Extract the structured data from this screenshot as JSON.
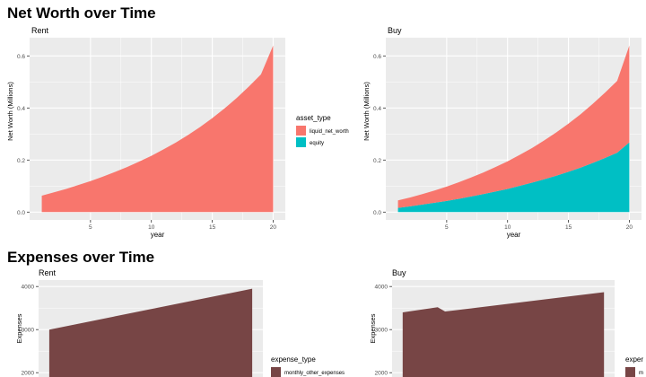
{
  "sections": {
    "net_worth_title": "Net Worth over Time",
    "expenses_title": "Expenses over Time"
  },
  "colors": {
    "liquid_net_worth": "#F8766D",
    "equity": "#00BFC4",
    "monthly_other_expenses": "#774545",
    "panel_bg": "#EBEBEB",
    "grid": "#FFFFFF"
  },
  "chart_data": [
    {
      "type": "area",
      "stacked": true,
      "title": "Rent",
      "xlabel": "year",
      "ylabel": "Net Worth (Millions)",
      "xlim": [
        0,
        21
      ],
      "ylim": [
        -0.03,
        0.67
      ],
      "xticks": [
        5,
        10,
        15,
        20
      ],
      "xtick_labels": [
        "5",
        "10",
        "15",
        "20"
      ],
      "yticks": [
        0.0,
        0.2,
        0.4,
        0.6
      ],
      "ytick_labels": [
        "0.0",
        "0.2",
        "0.4",
        "0.6"
      ],
      "grid": true,
      "legend": {
        "title": "asset_type",
        "placement": "right",
        "entries": [
          {
            "label": "liquid_net_worth",
            "color": "#F8766D"
          },
          {
            "label": "equity",
            "color": "#00BFC4"
          }
        ]
      },
      "x": [
        1,
        2,
        3,
        4,
        5,
        6,
        7,
        8,
        9,
        10,
        11,
        12,
        13,
        14,
        15,
        16,
        17,
        18,
        19,
        20
      ],
      "series": [
        {
          "name": "liquid_net_worth",
          "color": "#F8766D",
          "values": [
            0.063,
            0.076,
            0.089,
            0.104,
            0.119,
            0.136,
            0.154,
            0.173,
            0.194,
            0.216,
            0.241,
            0.267,
            0.296,
            0.327,
            0.361,
            0.398,
            0.438,
            0.482,
            0.529,
            0.64
          ]
        }
      ]
    },
    {
      "type": "area",
      "stacked": true,
      "title": "Buy",
      "xlabel": "year",
      "ylabel": "Net Worth (Millions)",
      "xlim": [
        0,
        21
      ],
      "ylim": [
        -0.03,
        0.67
      ],
      "xticks": [
        5,
        10,
        15,
        20
      ],
      "xtick_labels": [
        "5",
        "10",
        "15",
        "20"
      ],
      "yticks": [
        0.0,
        0.2,
        0.4,
        0.6
      ],
      "ytick_labels": [
        "0.0",
        "0.2",
        "0.4",
        "0.6"
      ],
      "grid": true,
      "x": [
        1,
        2,
        3,
        4,
        5,
        6,
        7,
        8,
        9,
        10,
        11,
        12,
        13,
        14,
        15,
        16,
        17,
        18,
        19,
        20
      ],
      "series": [
        {
          "name": "equity",
          "color": "#00BFC4",
          "values": [
            0.016,
            0.022,
            0.029,
            0.036,
            0.043,
            0.051,
            0.06,
            0.069,
            0.079,
            0.089,
            0.101,
            0.113,
            0.126,
            0.14,
            0.155,
            0.171,
            0.189,
            0.208,
            0.228,
            0.268
          ]
        },
        {
          "name": "liquid_net_worth",
          "color": "#F8766D",
          "values": [
            0.029,
            0.034,
            0.04,
            0.047,
            0.055,
            0.064,
            0.073,
            0.083,
            0.094,
            0.106,
            0.119,
            0.133,
            0.149,
            0.166,
            0.185,
            0.205,
            0.227,
            0.251,
            0.276,
            0.372
          ]
        }
      ]
    },
    {
      "type": "area",
      "stacked": true,
      "title": "Rent",
      "xlabel": "",
      "ylabel": "Expenses",
      "xlim": [
        0,
        21
      ],
      "ylim": [
        1900,
        4150
      ],
      "yticks": [
        2000,
        3000,
        4000
      ],
      "ytick_labels": [
        "2000",
        "3000",
        "4000"
      ],
      "grid": true,
      "legend": {
        "title": "expense_type",
        "placement": "right",
        "entries": [
          {
            "label": "monthly_other_expenses",
            "color": "#774545"
          }
        ]
      },
      "x": [
        1,
        20
      ],
      "series": [
        {
          "name": "monthly_other_expenses",
          "color": "#774545",
          "values": [
            3000,
            3950
          ]
        }
      ]
    },
    {
      "type": "area",
      "stacked": true,
      "title": "Buy",
      "xlabel": "",
      "ylabel": "Expenses",
      "xlim": [
        0,
        21
      ],
      "ylim": [
        1900,
        4150
      ],
      "yticks": [
        2000,
        3000,
        4000
      ],
      "ytick_labels": [
        "2000",
        "3000",
        "4000"
      ],
      "grid": true,
      "legend": {
        "title": "exper",
        "placement": "right",
        "entries": [
          {
            "label": "m",
            "color": "#774545"
          }
        ]
      },
      "x": [
        1,
        4.3,
        5,
        20
      ],
      "series": [
        {
          "name": "monthly_other_expenses",
          "color": "#774545",
          "values": [
            3400,
            3520,
            3420,
            3870
          ]
        }
      ]
    }
  ]
}
